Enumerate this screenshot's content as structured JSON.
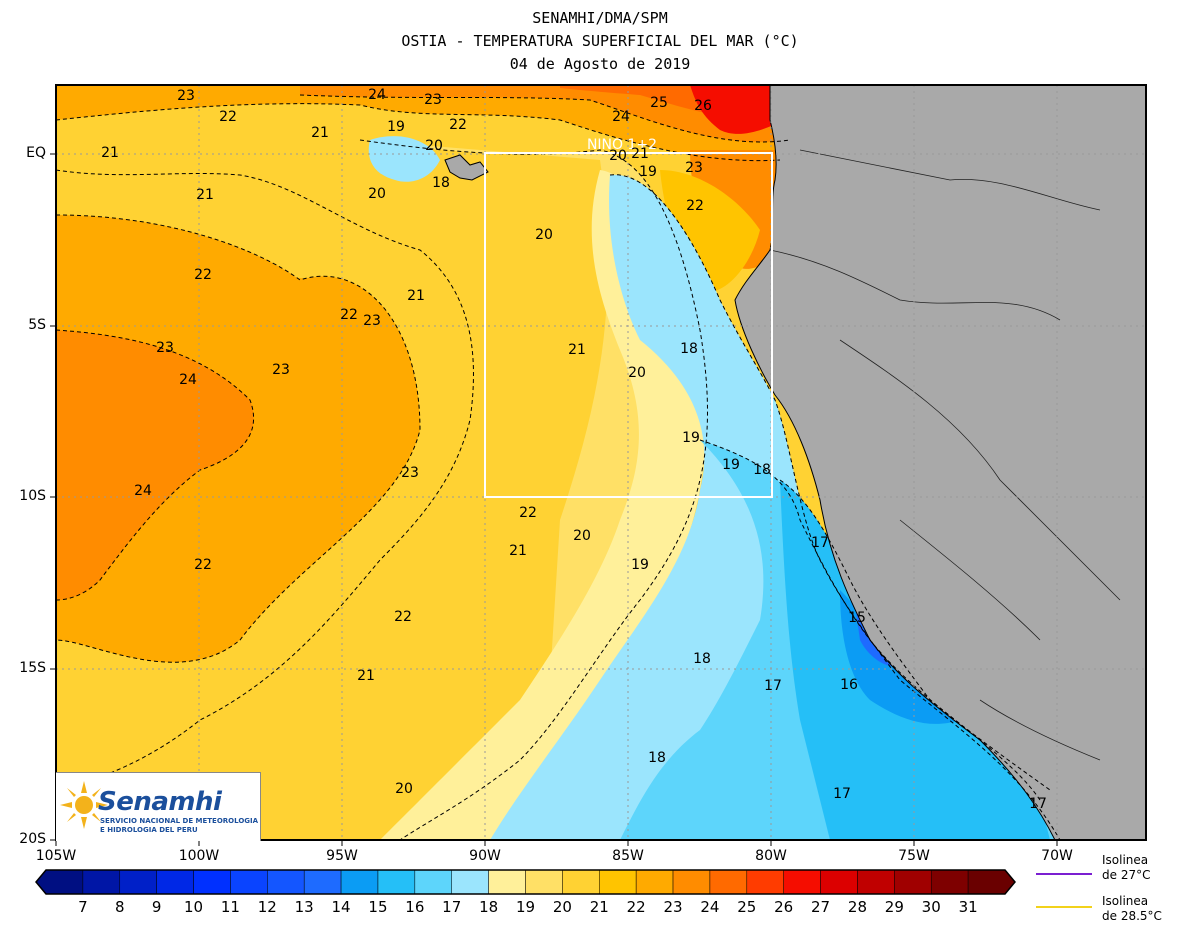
{
  "title": {
    "line1": "SENAMHI/DMA/SPM",
    "line2": "OSTIA - TEMPERATURA SUPERFICIAL DEL MAR (°C)",
    "line3": "04 de Agosto de 2019"
  },
  "map": {
    "lon_range": [
      -105,
      -67
    ],
    "lat_range": [
      -20,
      2
    ],
    "x_ticks": [
      "105W",
      "100W",
      "95W",
      "90W",
      "85W",
      "80W",
      "75W",
      "70W"
    ],
    "y_ticks": [
      "EQ",
      "5S",
      "10S",
      "15S",
      "20S"
    ],
    "region_label": "NINO 1+2",
    "land_color": "#a9a9a9",
    "contour_labels": [
      "23",
      "24",
      "23",
      "25",
      "26",
      "22",
      "21",
      "19",
      "22",
      "24",
      "21",
      "20",
      "20",
      "21",
      "23",
      "19",
      "18",
      "20",
      "22",
      "21",
      "20",
      "22",
      "21",
      "23",
      "22",
      "23",
      "21",
      "18",
      "20",
      "24",
      "23",
      "19",
      "19",
      "18",
      "24",
      "22",
      "21",
      "20",
      "23",
      "19",
      "17",
      "22",
      "15",
      "18",
      "22",
      "21",
      "17",
      "16",
      "18",
      "20",
      "17",
      "17"
    ]
  },
  "colorbar": {
    "labels": [
      "7",
      "8",
      "9",
      "10",
      "11",
      "12",
      "13",
      "14",
      "15",
      "16",
      "17",
      "18",
      "19",
      "20",
      "21",
      "22",
      "23",
      "24",
      "25",
      "26",
      "27",
      "28",
      "29",
      "30",
      "31"
    ],
    "colors": [
      "#000f82",
      "#0016a6",
      "#0020c8",
      "#0028e6",
      "#0030ff",
      "#0a44ff",
      "#1456ff",
      "#1e6bff",
      "#0b9cf4",
      "#25bff7",
      "#5dd5fb",
      "#9be5fd",
      "#fff09a",
      "#ffe066",
      "#ffd233",
      "#ffc400",
      "#ffaa00",
      "#ff8c00",
      "#ff6a00",
      "#ff3c00",
      "#f50d00",
      "#dc0000",
      "#c00000",
      "#a00000",
      "#7e0000",
      "#6a0000"
    ]
  },
  "isolines": {
    "iso27_line1": "Isolinea",
    "iso27_line2": "de 27°C",
    "iso27_color": "#7b1fd1",
    "iso285_line1": "Isolinea",
    "iso285_line2": "de 28.5°C",
    "iso285_color": "#f2d21b"
  },
  "logo": {
    "name": "Senamhi",
    "sub1": "SERVICIO NACIONAL DE METEOROLOGIA",
    "sub2": "E HIDROLOGIA DEL PERU"
  }
}
